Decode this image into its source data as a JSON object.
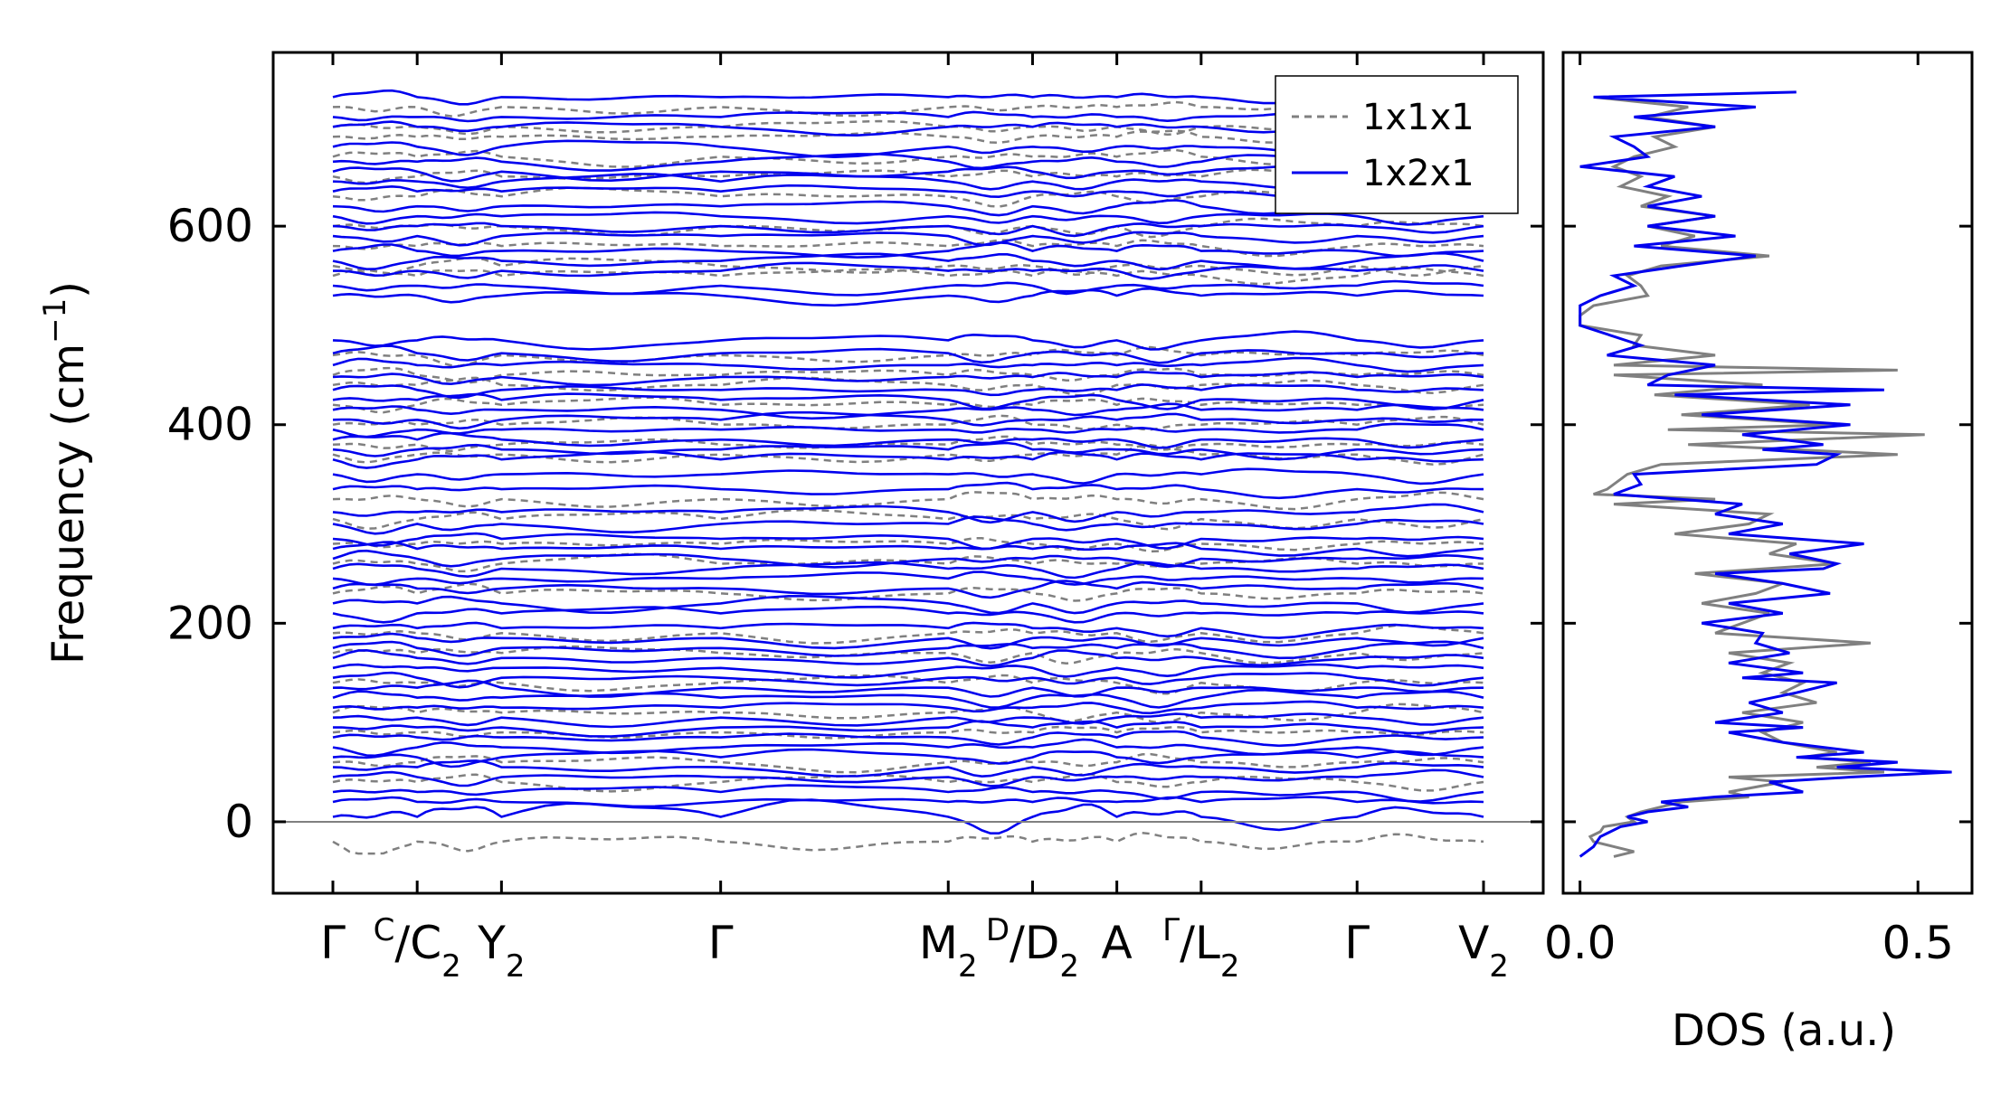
{
  "chart_data": [
    {
      "type": "line",
      "panel": "band-structure",
      "ylabel": "Frequency (cm⁻¹)",
      "ylabel_base": "Frequency (cm",
      "ylabel_sup": "−1",
      "ylabel_end": ")",
      "ylim": [
        -72,
        775
      ],
      "yticks": [
        0,
        200,
        400,
        600
      ],
      "ytick_labels": [
        "0",
        "200",
        "400",
        "600"
      ],
      "xticks": [
        {
          "label": "Γ"
        },
        {
          "label": "C",
          "sub_label": "C",
          "slash": "/",
          "sub": "2",
          "combined": true
        },
        {
          "label": "Y",
          "sub": "2"
        },
        {
          "label": "Γ"
        },
        {
          "label": "M",
          "sub": "2"
        },
        {
          "label": "D",
          "sub_label": "D",
          "slash": "/",
          "sub": "2",
          "combined": true
        },
        {
          "label": "A"
        },
        {
          "label": "Γ",
          "sub_label": "L",
          "slash": "/",
          "sub": "2",
          "combined": true
        },
        {
          "label": "Γ"
        },
        {
          "label": "V",
          "sub": "2"
        }
      ],
      "legend": [
        {
          "name": "1x1x1",
          "color": "#808080",
          "style": "dashed"
        },
        {
          "name": "1x2x1",
          "color": "#0000ee",
          "style": "solid"
        }
      ],
      "legend_position": "top-right",
      "zero_line": true,
      "bands": {
        "1x2x1_levels": [
          5,
          20,
          30,
          45,
          55,
          65,
          75,
          85,
          95,
          105,
          115,
          125,
          135,
          145,
          155,
          165,
          175,
          185,
          195,
          210,
          220,
          235,
          245,
          255,
          265,
          275,
          285,
          300,
          312,
          335,
          350,
          365,
          375,
          385,
          395,
          405,
          415,
          425,
          435,
          448,
          460,
          472,
          485,
          530,
          540,
          555,
          565,
          575,
          590,
          600,
          610,
          620,
          635,
          645,
          655,
          665,
          680,
          700,
          710,
          730
        ],
        "1x1x1_levels": [
          -20,
          40,
          60,
          90,
          110,
          140,
          170,
          190,
          230,
          260,
          280,
          305,
          325,
          370,
          380,
          400,
          420,
          440,
          450,
          470,
          550,
          560,
          580,
          600,
          630,
          650,
          670,
          690,
          700,
          720
        ],
        "segment_lengths": [
          1,
          1,
          2.6,
          2.7,
          1,
          1,
          1,
          1.85,
          1.5
        ]
      }
    },
    {
      "type": "line",
      "panel": "dos",
      "xlabel": "DOS (a.u.)",
      "xlim": [
        -0.025,
        0.58
      ],
      "xticks": [
        0.0,
        0.5
      ],
      "xtick_labels": [
        "0.0",
        "0.5"
      ],
      "series": [
        {
          "name": "1x1x1",
          "color": "#808080",
          "freq": [
            -35,
            -30,
            -25,
            -20,
            -15,
            -10,
            -5,
            0,
            5,
            10,
            20,
            25,
            30,
            40,
            45,
            50,
            55,
            60,
            65,
            70,
            80,
            90,
            100,
            110,
            120,
            130,
            140,
            150,
            160,
            170,
            180,
            190,
            200,
            210,
            220,
            230,
            240,
            250,
            260,
            270,
            280,
            290,
            300,
            310,
            320,
            325,
            330,
            335,
            350,
            360,
            370,
            380,
            390,
            395,
            400,
            410,
            420,
            430,
            440,
            450,
            455,
            460,
            470,
            480,
            490,
            500,
            510,
            520,
            530,
            540,
            550,
            560,
            570,
            580,
            590,
            600,
            610,
            620,
            630,
            640,
            650,
            660,
            670,
            680,
            690,
            700,
            710,
            720,
            730
          ],
          "dos": [
            0.05,
            0.08,
            0.05,
            0.02,
            0.015,
            0.03,
            0.035,
            0.08,
            0.07,
            0.09,
            0.15,
            0.25,
            0.22,
            0.3,
            0.22,
            0.45,
            0.35,
            0.43,
            0.33,
            0.38,
            0.3,
            0.27,
            0.33,
            0.24,
            0.35,
            0.3,
            0.33,
            0.27,
            0.31,
            0.22,
            0.43,
            0.2,
            0.24,
            0.28,
            0.18,
            0.26,
            0.3,
            0.17,
            0.38,
            0.28,
            0.32,
            0.14,
            0.25,
            0.28,
            0.05,
            0.2,
            0.02,
            0.04,
            0.07,
            0.12,
            0.47,
            0.16,
            0.51,
            0.13,
            0.38,
            0.15,
            0.34,
            0.11,
            0.27,
            0.05,
            0.47,
            0.05,
            0.2,
            0.08,
            0.09,
            0.0,
            0.0,
            0.02,
            0.1,
            0.09,
            0.07,
            0.12,
            0.28,
            0.12,
            0.17,
            0.1,
            0.2,
            0.09,
            0.13,
            0.06,
            0.09,
            0.05,
            0.08,
            0.14,
            0.11,
            0.2,
            0.1,
            0.16,
            0.02
          ]
        },
        {
          "name": "1x2x1",
          "color": "#0000ee",
          "freq": [
            -35,
            -25,
            -15,
            -5,
            0,
            5,
            10,
            15,
            20,
            25,
            30,
            40,
            45,
            50,
            55,
            60,
            65,
            70,
            80,
            90,
            95,
            100,
            110,
            120,
            130,
            140,
            145,
            150,
            160,
            170,
            180,
            190,
            200,
            210,
            220,
            230,
            240,
            250,
            255,
            260,
            270,
            280,
            290,
            300,
            310,
            320,
            330,
            340,
            350,
            360,
            370,
            375,
            380,
            390,
            400,
            410,
            420,
            430,
            435,
            440,
            450,
            460,
            470,
            480,
            500,
            520,
            530,
            540,
            550,
            560,
            570,
            580,
            590,
            600,
            610,
            620,
            630,
            640,
            650,
            660,
            670,
            680,
            690,
            700,
            710,
            720,
            730,
            735
          ],
          "dos": [
            0.0,
            0.02,
            0.03,
            0.06,
            0.1,
            0.07,
            0.1,
            0.16,
            0.12,
            0.2,
            0.33,
            0.28,
            0.4,
            0.55,
            0.38,
            0.47,
            0.32,
            0.42,
            0.3,
            0.22,
            0.33,
            0.2,
            0.3,
            0.25,
            0.32,
            0.38,
            0.24,
            0.33,
            0.22,
            0.31,
            0.26,
            0.27,
            0.18,
            0.3,
            0.22,
            0.37,
            0.3,
            0.2,
            0.36,
            0.38,
            0.31,
            0.42,
            0.22,
            0.3,
            0.2,
            0.24,
            0.05,
            0.09,
            0.08,
            0.35,
            0.38,
            0.27,
            0.36,
            0.24,
            0.4,
            0.18,
            0.4,
            0.14,
            0.45,
            0.1,
            0.13,
            0.2,
            0.04,
            0.09,
            0.0,
            0.0,
            0.03,
            0.08,
            0.05,
            0.15,
            0.26,
            0.08,
            0.23,
            0.1,
            0.2,
            0.1,
            0.18,
            0.1,
            0.14,
            0.0,
            0.1,
            0.08,
            0.05,
            0.2,
            0.08,
            0.26,
            0.02,
            0.32
          ]
        }
      ]
    }
  ]
}
